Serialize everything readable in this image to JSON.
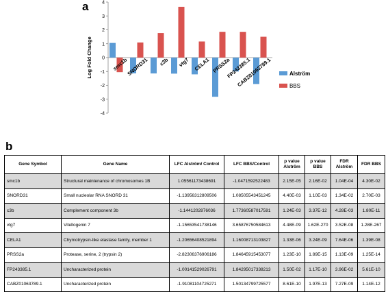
{
  "panel_a_label": "a",
  "panel_b_label": "b",
  "chart_data": {
    "type": "bar",
    "categories": [
      "smc1b",
      "SNORD31",
      "c3b",
      "vtg7",
      "CELA1",
      "PRSS2a",
      "FP243385.1",
      "CABZ01063789.1"
    ],
    "series": [
      {
        "name": "Alström",
        "color": "#5b9bd5",
        "values": [
          1.0556,
          -1.1396,
          -1.1441,
          -1.1565,
          -1.2066,
          -2.8231,
          -1.0014,
          -1.9108
        ]
      },
      {
        "name": "BBS",
        "color": "#d9534f",
        "values": [
          -1.0472,
          1.0851,
          1.7736,
          3.6588,
          1.1601,
          1.8465,
          1.843,
          1.5013
        ]
      }
    ],
    "ylabel": "Log Fold Change",
    "ylim": [
      -4,
      4
    ],
    "yticks": [
      "-4",
      "-3",
      "-2",
      "-1",
      "0",
      "1",
      "2",
      "3",
      "4"
    ],
    "legend_position": "right"
  },
  "table": {
    "headers": [
      "Gene Symbol",
      "Gene Name",
      "LFC Alström/ Control",
      "LFC BBS/Control",
      "p value Alström",
      "p value BBS",
      "FDR Alström",
      "FDR BBS"
    ],
    "rows": [
      [
        "smc1b",
        "Structural maintenance of chromosomes 1B",
        "1.05561173438691",
        "-1.0471592522483",
        "2.15E-05",
        "2.16E-02",
        "1.04E-04",
        "4.30E-02"
      ],
      [
        "SNORD31",
        "Small nucleolar RNA SNORD 31",
        "-1.13956312809506",
        "1.08505543451245",
        "4.40E-03",
        "1.10E-03",
        "1.34E-02",
        "2.70E-03"
      ],
      [
        "c3b",
        "Complement component 3b",
        "-1.1441202876036",
        "1.77360587017591",
        "1.24E-03",
        "3.37E-12",
        "4.28E-03",
        "1.80E-11"
      ],
      [
        "vtg7",
        "Vitellogenin 7",
        "-1.15653541738146",
        "3.65876750584613",
        "4.48E-09",
        "1.62E-270",
        "3.52E-08",
        "1.28E-267"
      ],
      [
        "CELA1",
        "Chymotrypsin-like elastase family, member 1",
        "-1.20656408521894",
        "1.16008713103827",
        "1.33E-06",
        "3.24E-09",
        "7.64E-06",
        "1.39E-08"
      ],
      [
        "PRSS2a",
        "Protease, serine, 2 (trypsin 2)",
        "-2.82306376906186",
        "1.84645915453077",
        "1.23E-10",
        "1.89E-15",
        "1.13E-09",
        "1.25E-14"
      ],
      [
        "FP243385.1",
        "Uncharacterized protein",
        "-1.00141529026791",
        "1.84295017338213",
        "1.50E-02",
        "1.17E-10",
        "3.96E-02",
        "5.61E-10"
      ],
      [
        "CABZ01063789.1",
        "Uncharacterized protein",
        "-1.91081104725271",
        "1.50134799725577",
        "8.61E-10",
        "1.97E-13",
        "7.27E-09",
        "1.14E-12"
      ]
    ]
  }
}
